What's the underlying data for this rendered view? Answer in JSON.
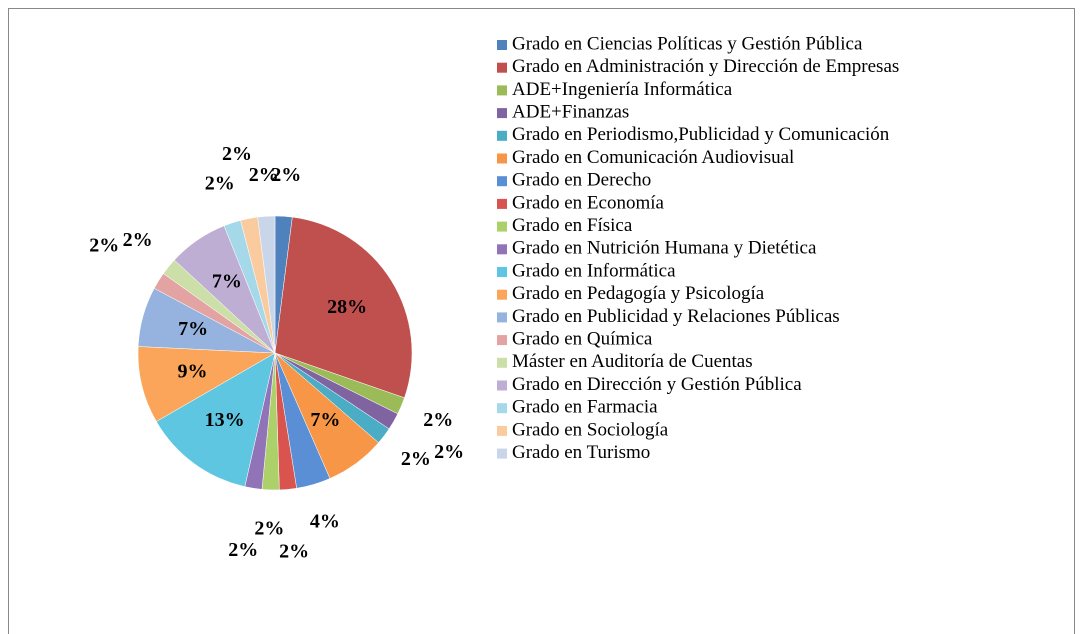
{
  "chart_data": {
    "type": "pie",
    "categories": [
      "Grado en Ciencias Políticas y Gestión Pública",
      "Grado en Administración y Dirección de Empresas",
      "ADE+Ingeniería Informática",
      "ADE+Finanzas",
      "Grado en Periodismo,Publicidad y Comunicación",
      "Grado en Comunicación Audiovisual",
      "Grado en Derecho",
      "Grado en Economía",
      "Grado en Física",
      "Grado en Nutrición Humana y Dietética",
      "Grado en Informática",
      "Grado en Pedagogía y Psicología",
      "Grado en Publicidad y Relaciones Públicas",
      "Grado en Química",
      "Máster en Auditoría de Cuentas",
      "Grado en Dirección y Gestión Pública",
      "Grado en Farmacia",
      "Grado en Sociología",
      "Grado en Turismo"
    ],
    "values": [
      2,
      28,
      2,
      2,
      2,
      7,
      4,
      2,
      2,
      2,
      13,
      9,
      7,
      2,
      2,
      7,
      2,
      2,
      2
    ],
    "value_labels": [
      "2%",
      "28%",
      "2%",
      "2%",
      "2%",
      "7%",
      "4%",
      "2%",
      "2%",
      "2%",
      "13%",
      "9%",
      "7%",
      "2%",
      "2%",
      "7%",
      "2%",
      "2%",
      "2%"
    ],
    "colors": [
      "#4F81BD",
      "#C0504D",
      "#9BBB59",
      "#8064A2",
      "#4BACC6",
      "#F79646",
      "#5A8FD6",
      "#D9534F",
      "#ADD16A",
      "#9173B8",
      "#5EC6E0",
      "#FBA55A",
      "#95B3DE",
      "#E3A3A2",
      "#CCDFA8",
      "#BFAED3",
      "#A5D8E8",
      "#FACB9F",
      "#C9D6EA"
    ],
    "legend": "right"
  }
}
